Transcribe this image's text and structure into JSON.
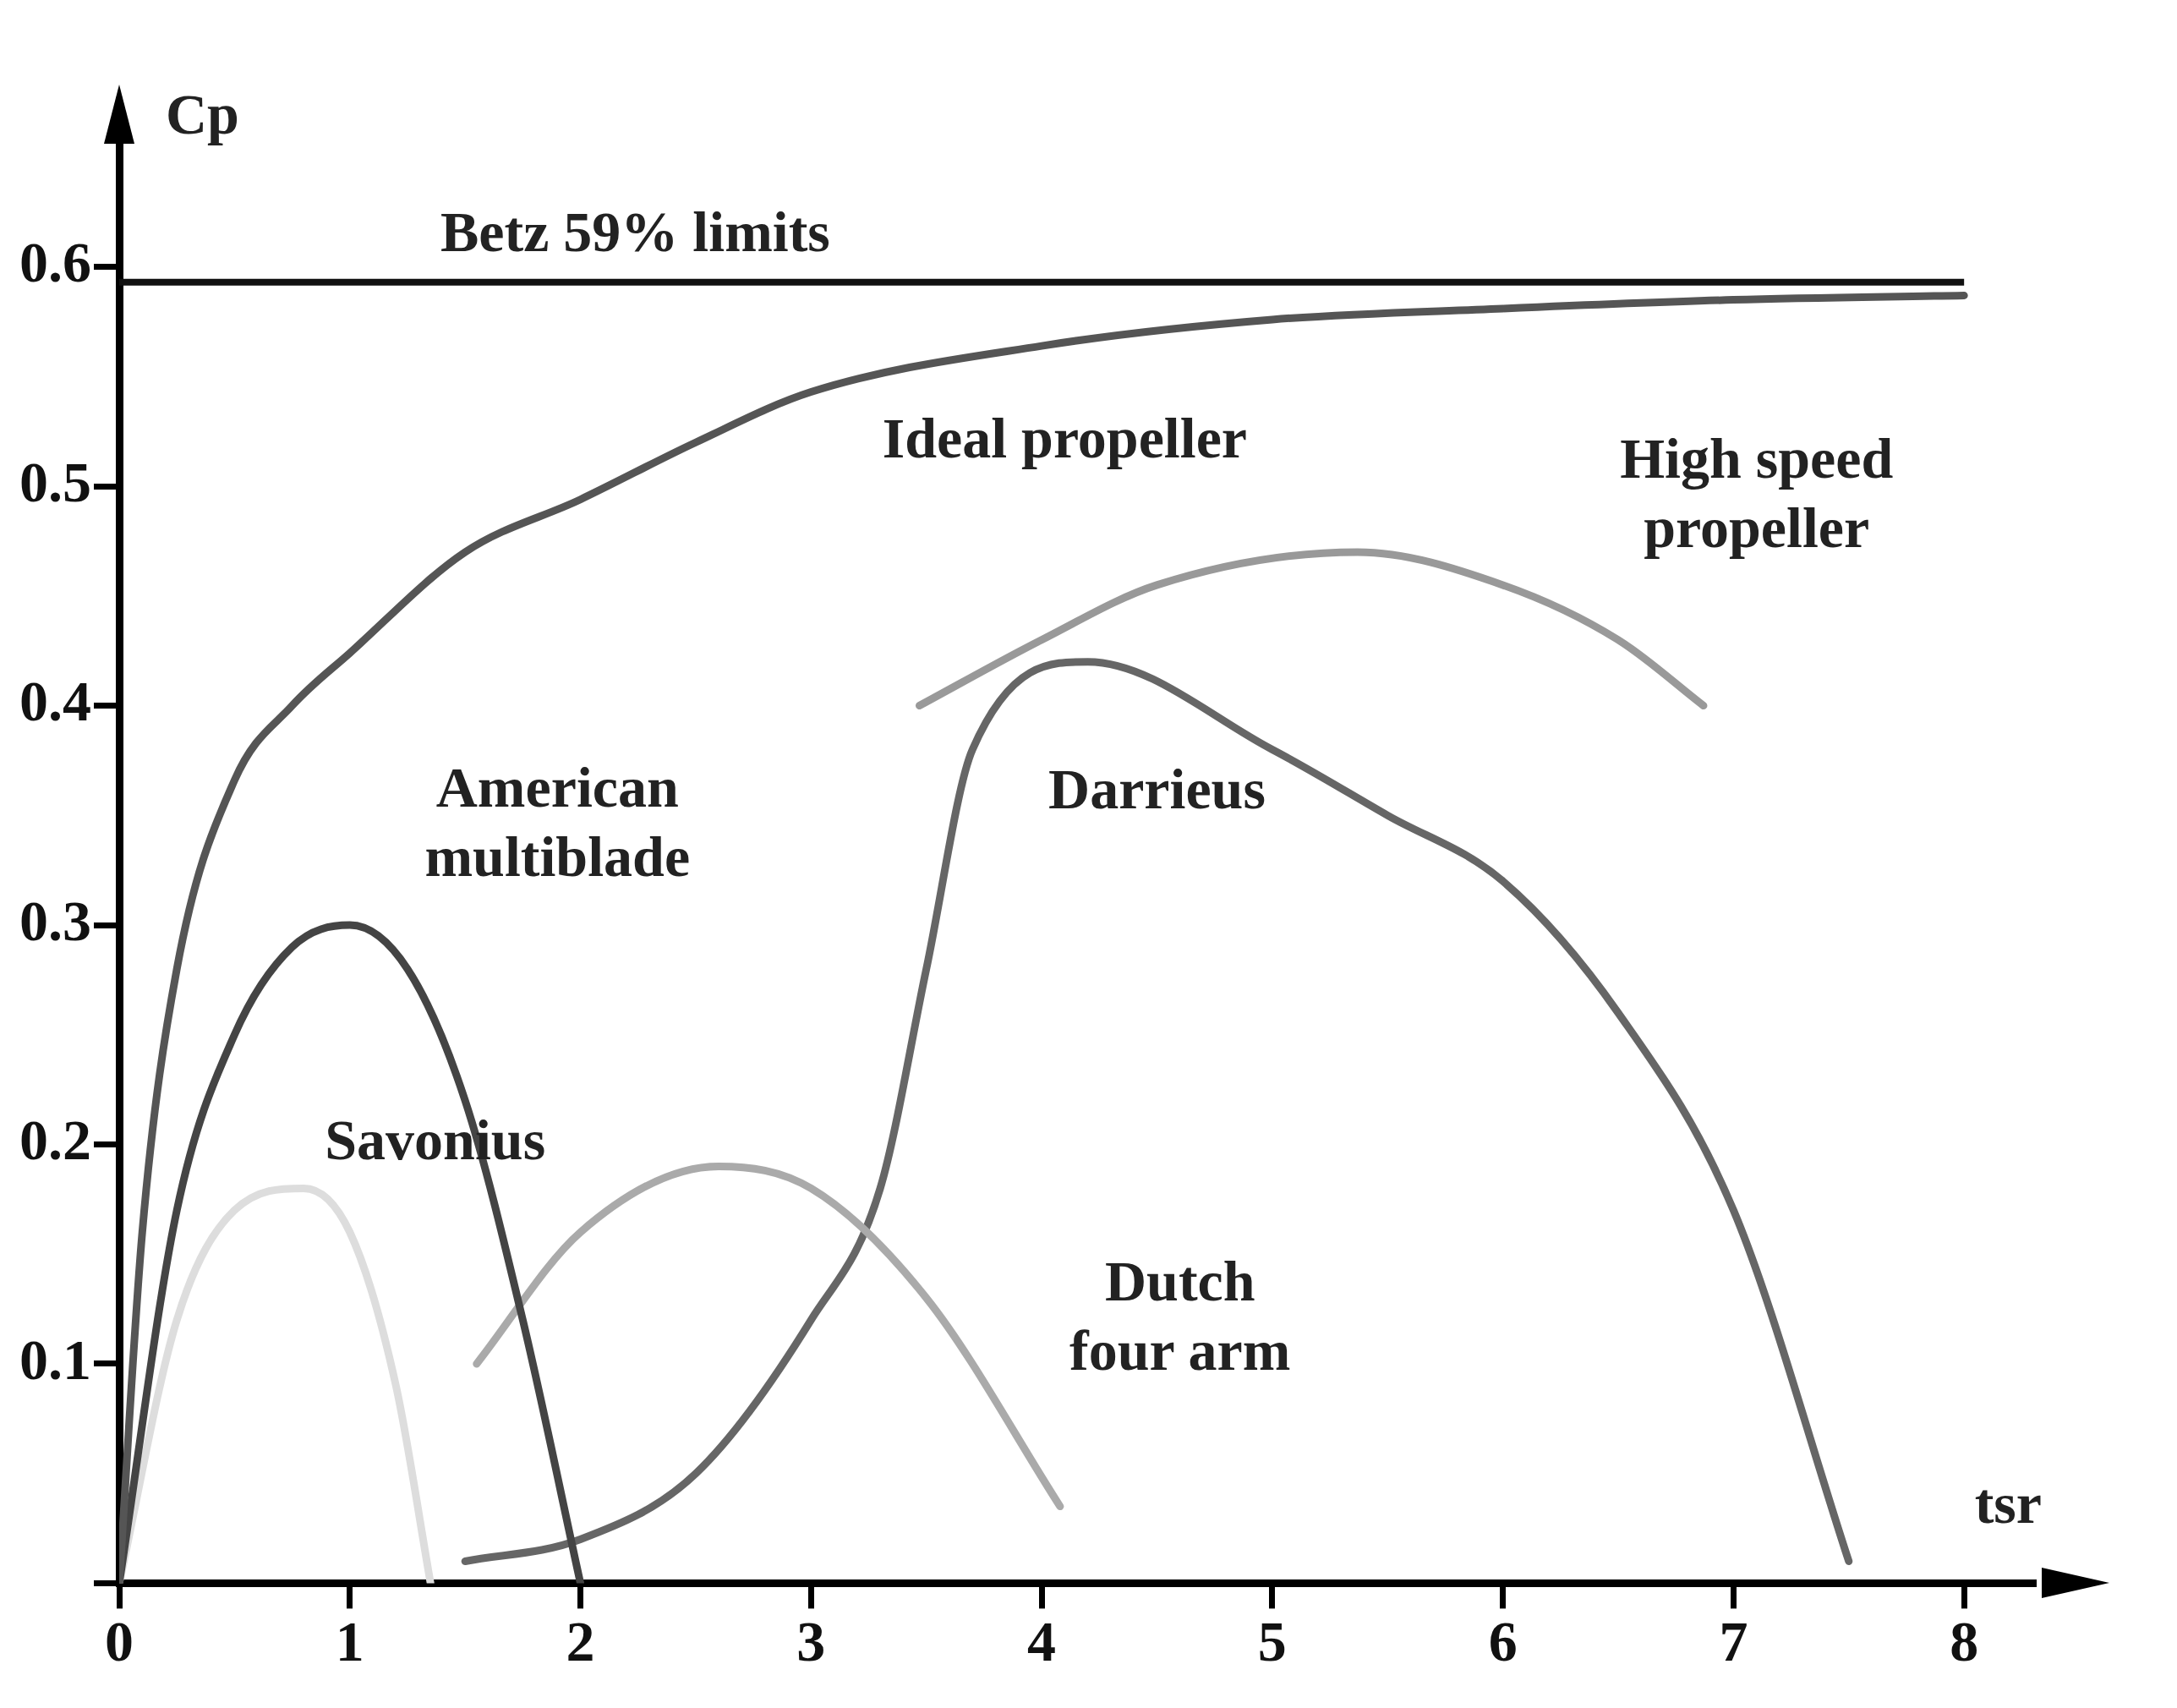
{
  "chart_data": {
    "type": "line",
    "xlabel": "tsr",
    "ylabel": "Cp",
    "xlim": [
      0,
      8.3
    ],
    "ylim": [
      0,
      0.66
    ],
    "xticks": [
      0,
      1,
      2,
      3,
      4,
      5,
      6,
      7,
      8
    ],
    "yticks": [
      {
        "value": 0,
        "label": null
      },
      0.1,
      0.2,
      0.3,
      0.4,
      0.5,
      0.6
    ],
    "grid": false,
    "legend": false,
    "marker": "none",
    "line_style": "solid",
    "ref_lines": [
      {
        "axis": "y",
        "value": 0.593,
        "label": "Betz 59% limits",
        "color": "#111111"
      }
    ],
    "series": [
      {
        "name": "Ideal propeller",
        "color": "#555555",
        "x": [
          0,
          0.1,
          0.25,
          0.5,
          0.75,
          1,
          1.5,
          2,
          2.5,
          3,
          4,
          5,
          6,
          7,
          8
        ],
        "values": [
          0,
          0.16,
          0.28,
          0.366,
          0.4,
          0.424,
          0.47,
          0.494,
          0.52,
          0.543,
          0.564,
          0.576,
          0.581,
          0.585,
          0.587
        ]
      },
      {
        "name": "American\nmultiblade",
        "color": "#444444",
        "x": [
          0,
          0.25,
          0.5,
          0.75,
          1,
          1.25,
          1.5,
          1.75,
          2
        ],
        "values": [
          0,
          0.17,
          0.25,
          0.29,
          0.3,
          0.28,
          0.22,
          0.12,
          0
        ]
      },
      {
        "name": "Savonius",
        "color": "#dddddd",
        "x": [
          0,
          0.25,
          0.5,
          0.8,
          1,
          1.2,
          1.35
        ],
        "values": [
          0,
          0.12,
          0.17,
          0.18,
          0.16,
          0.09,
          0
        ]
      },
      {
        "name": "Dutch\nfour arm",
        "color": "#aaaaaa",
        "x": [
          1.55,
          2,
          2.6,
          3,
          3.5,
          4.08
        ],
        "values": [
          0.1,
          0.16,
          0.19,
          0.18,
          0.13,
          0.035
        ]
      },
      {
        "name": "Darrieus",
        "color": "#666666",
        "x": [
          1.5,
          2,
          2.5,
          3,
          3.3,
          3.5,
          3.7,
          4.2,
          5,
          5.5,
          6,
          6.5,
          7,
          7.5
        ],
        "values": [
          0.01,
          0.02,
          0.05,
          0.12,
          0.18,
          0.28,
          0.38,
          0.42,
          0.38,
          0.35,
          0.32,
          0.26,
          0.17,
          0.01
        ]
      },
      {
        "name": "High speed\npropeller",
        "color": "#999999",
        "x": [
          3.47,
          4,
          4.5,
          5.37,
          6,
          6.5,
          6.87
        ],
        "values": [
          0.4,
          0.43,
          0.455,
          0.47,
          0.455,
          0.43,
          0.4
        ]
      }
    ]
  }
}
